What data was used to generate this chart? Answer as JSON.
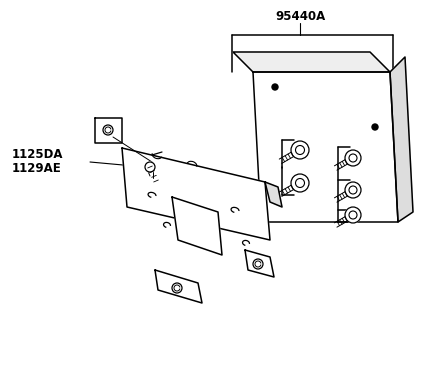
{
  "bg_color": "#ffffff",
  "line_color": "#000000",
  "label_95440A": "95440A",
  "label_1125DA": "1125DA",
  "label_1129AE": "1129AE",
  "font_size_labels": 8.5,
  "font_weight": "bold"
}
